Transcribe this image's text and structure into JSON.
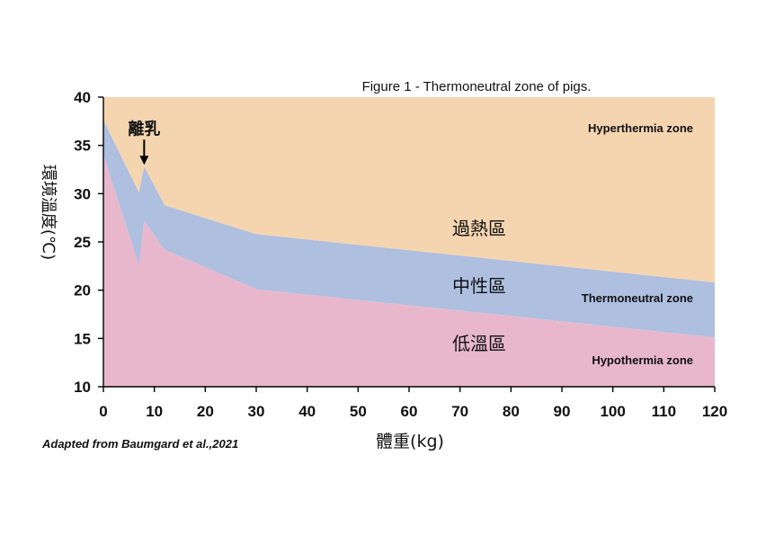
{
  "chart_data": {
    "type": "area",
    "title": "Figure 1 - Thermoneutral zone of pigs.",
    "xlabel": "體重(kg)",
    "ylabel": "環境溫度(℃)",
    "credit": "Adapted from Baumgard et al.,2021",
    "xlim": [
      0,
      120
    ],
    "ylim": [
      10,
      40
    ],
    "x_ticks": [
      "0",
      "10",
      "20",
      "30",
      "40",
      "50",
      "60",
      "70",
      "80",
      "90",
      "100",
      "110",
      "120"
    ],
    "y_ticks": [
      "10",
      "15",
      "20",
      "25",
      "30",
      "35",
      "40"
    ],
    "lower_critical_temperature": {
      "x": [
        0,
        7,
        8,
        12,
        30,
        120
      ],
      "y": [
        34,
        22.5,
        27.2,
        24.2,
        20.1,
        15.1
      ]
    },
    "upper_critical_temperature": {
      "x": [
        0,
        7,
        8,
        12,
        30,
        120
      ],
      "y": [
        37.6,
        30.1,
        32.8,
        28.8,
        25.8,
        20.8
      ]
    },
    "zones": [
      {
        "label_en": "Hyperthermia zone",
        "label_cn": "過熱區",
        "color": "#f5d5b0"
      },
      {
        "label_en": "Thermoneutral zone",
        "label_cn": "中性區",
        "color": "#aebfe0"
      },
      {
        "label_en": "Hypothermia zone",
        "label_cn": "低溫區",
        "color": "#e8b7cb"
      }
    ],
    "annotation": {
      "text": "離乳",
      "x": 8,
      "y": 32.8
    },
    "grid": false
  }
}
